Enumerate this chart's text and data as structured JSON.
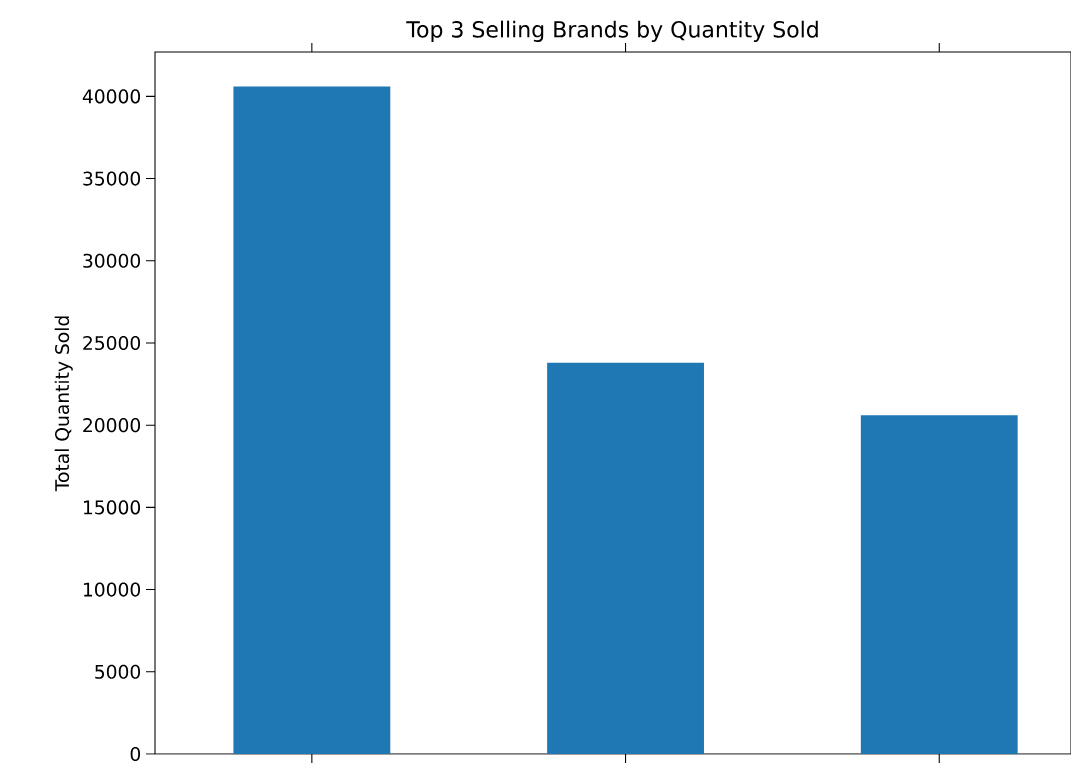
{
  "chart_data": {
    "type": "bar",
    "title": "Top 3 Selling Brands by Quantity Sold",
    "ylabel": "Total Quantity Sold",
    "categories": [
      null,
      null,
      null
    ],
    "values": [
      40600,
      23800,
      20600
    ],
    "color": "#1f77b4",
    "ylim": [
      0,
      42700
    ],
    "yticks": [
      0,
      5000,
      10000,
      15000,
      20000,
      25000,
      30000,
      35000,
      40000
    ],
    "tick_labels": "y",
    "grid": false
  }
}
